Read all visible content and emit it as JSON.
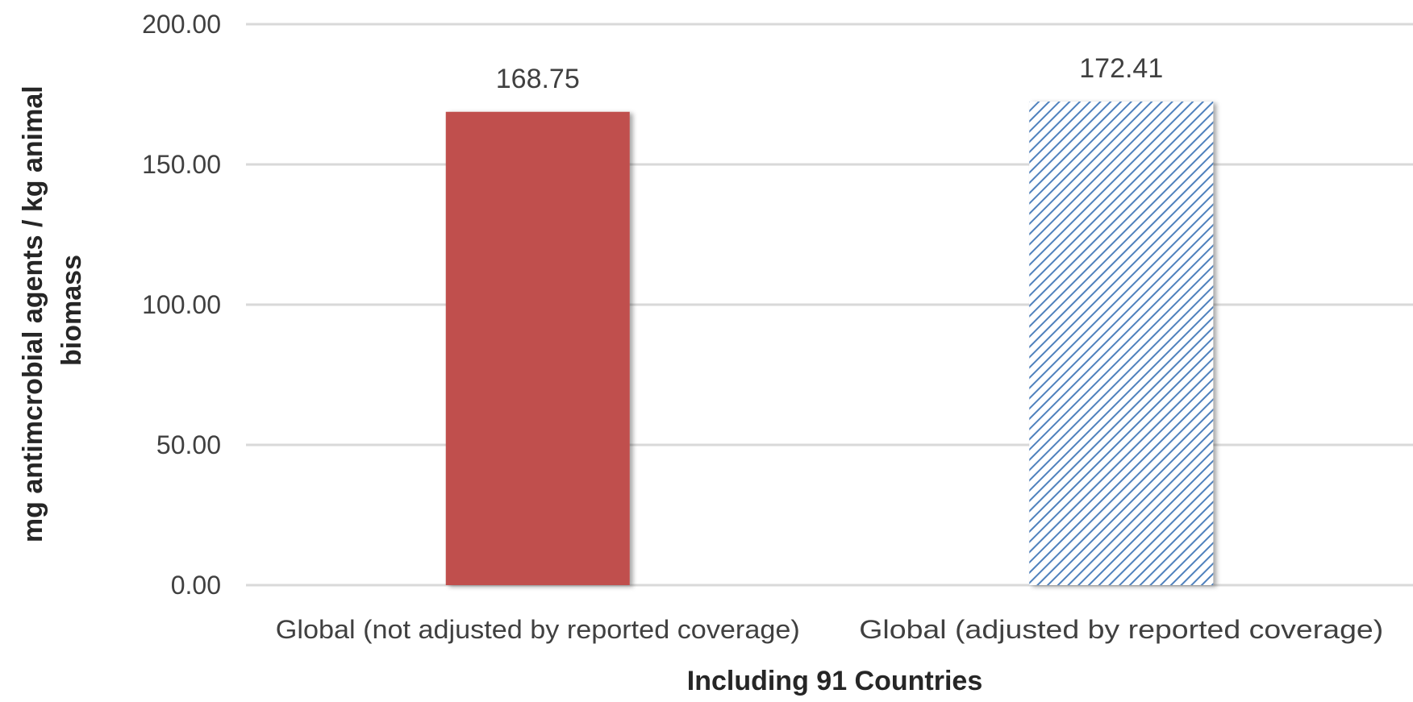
{
  "chart_data": {
    "type": "bar",
    "title": "",
    "xlabel": "Including 91 Countries",
    "ylabel_lines": [
      "mg antimcrobial agents / kg animal",
      "biomass"
    ],
    "categories": [
      "Global (not adjusted by reported coverage)",
      "Global (adjusted by reported coverage)"
    ],
    "values": [
      168.75,
      172.41
    ],
    "value_labels": [
      "168.75",
      "172.41"
    ],
    "ylim": [
      0,
      200
    ],
    "yticks": [
      "0.00",
      "50.00",
      "100.00",
      "150.00",
      "200.00"
    ],
    "grid": true,
    "legend": "none",
    "bar_styles": [
      {
        "fill": "#c0504d",
        "pattern": "solid"
      },
      {
        "fill": "#4f81bd",
        "pattern": "diagonal-hatch"
      }
    ],
    "gridline_color": "#d9d9d9"
  }
}
